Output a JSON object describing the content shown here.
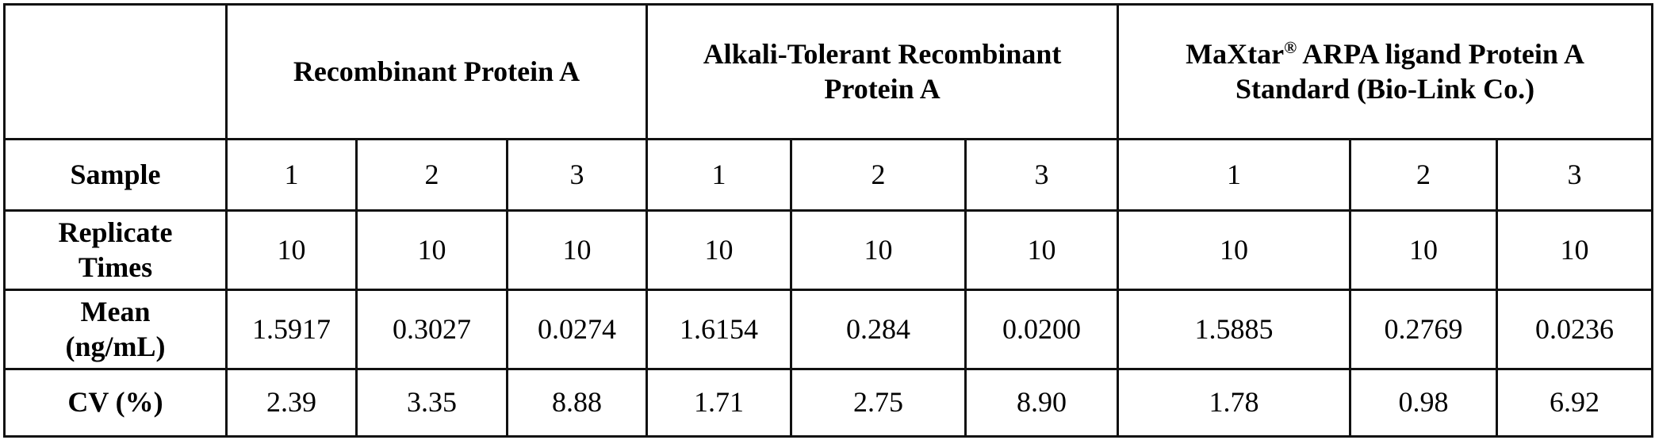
{
  "table": {
    "groups": [
      {
        "name": "Recombinant Protein A",
        "lines": [
          "Recombinant Protein A"
        ]
      },
      {
        "name": "Alkali-Tolerant Recombinant Protein A",
        "lines": [
          "Alkali-Tolerant Recombinant",
          "Protein A"
        ]
      },
      {
        "name": "MaXtar® ARPA ligand Protein A Standard (Bio-Link Co.)",
        "brand": "MaXtar",
        "reg": "®",
        "line1_rest": " ARPA ligand Protein A",
        "line2": "Standard (Bio-Link Co.)"
      }
    ],
    "rows": [
      {
        "label": "Sample",
        "values": [
          "1",
          "2",
          "3",
          "1",
          "2",
          "3",
          "1",
          "2",
          "3"
        ]
      },
      {
        "label_lines": [
          "Replicate",
          "Times"
        ],
        "values": [
          "10",
          "10",
          "10",
          "10",
          "10",
          "10",
          "10",
          "10",
          "10"
        ]
      },
      {
        "label_lines": [
          "Mean",
          "(ng/mL)"
        ],
        "values": [
          "1.5917",
          "0.3027",
          "0.0274",
          "1.6154",
          "0.284",
          "0.0200",
          "1.5885",
          "0.2769",
          "0.0236"
        ]
      },
      {
        "label": "CV (%)",
        "values": [
          "2.39",
          "3.35",
          "8.88",
          "1.71",
          "2.75",
          "8.90",
          "1.78",
          "0.98",
          "6.92"
        ]
      }
    ]
  }
}
